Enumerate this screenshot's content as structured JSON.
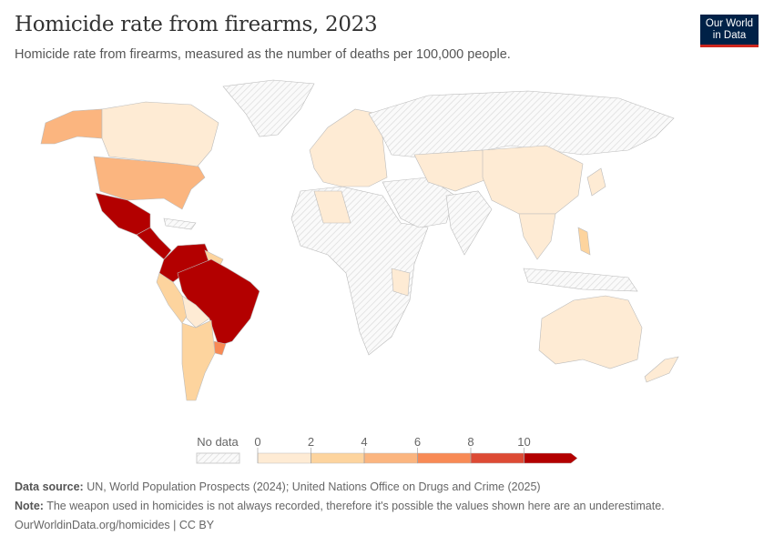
{
  "header": {
    "title": "Homicide rate from firearms, 2023",
    "subtitle": "Homicide rate from firearms, measured as the number of deaths per 100,000 people."
  },
  "logo": {
    "line1": "Our World",
    "line2": "in Data",
    "bg": "#002147",
    "accent": "#ce261e"
  },
  "chart_data": {
    "type": "choropleth-map",
    "year": 2023,
    "legend": {
      "no_data_label": "No data",
      "ticks": [
        "0",
        "2",
        "4",
        "6",
        "8",
        "10"
      ],
      "bins": [
        {
          "min": 0,
          "max": 2,
          "color": "#feebd4"
        },
        {
          "min": 2,
          "max": 4,
          "color": "#fdd49e"
        },
        {
          "min": 4,
          "max": 6,
          "color": "#fbb57f"
        },
        {
          "min": 6,
          "max": 8,
          "color": "#f88a55"
        },
        {
          "min": 8,
          "max": 10,
          "color": "#dd4a34"
        },
        {
          "min": 10,
          "max": null,
          "color": "#b30000"
        }
      ]
    }
  },
  "footer": {
    "source_label": "Data source:",
    "source": " UN, World Population Prospects (2024); United Nations Office on Drugs and Crime (2025)",
    "note_label": "Note:",
    "note": " The weapon used in homicides is not always recorded, therefore it's possible the values shown here are an underestimate.",
    "url": "OurWorldinData.org/homicides | CC BY"
  }
}
